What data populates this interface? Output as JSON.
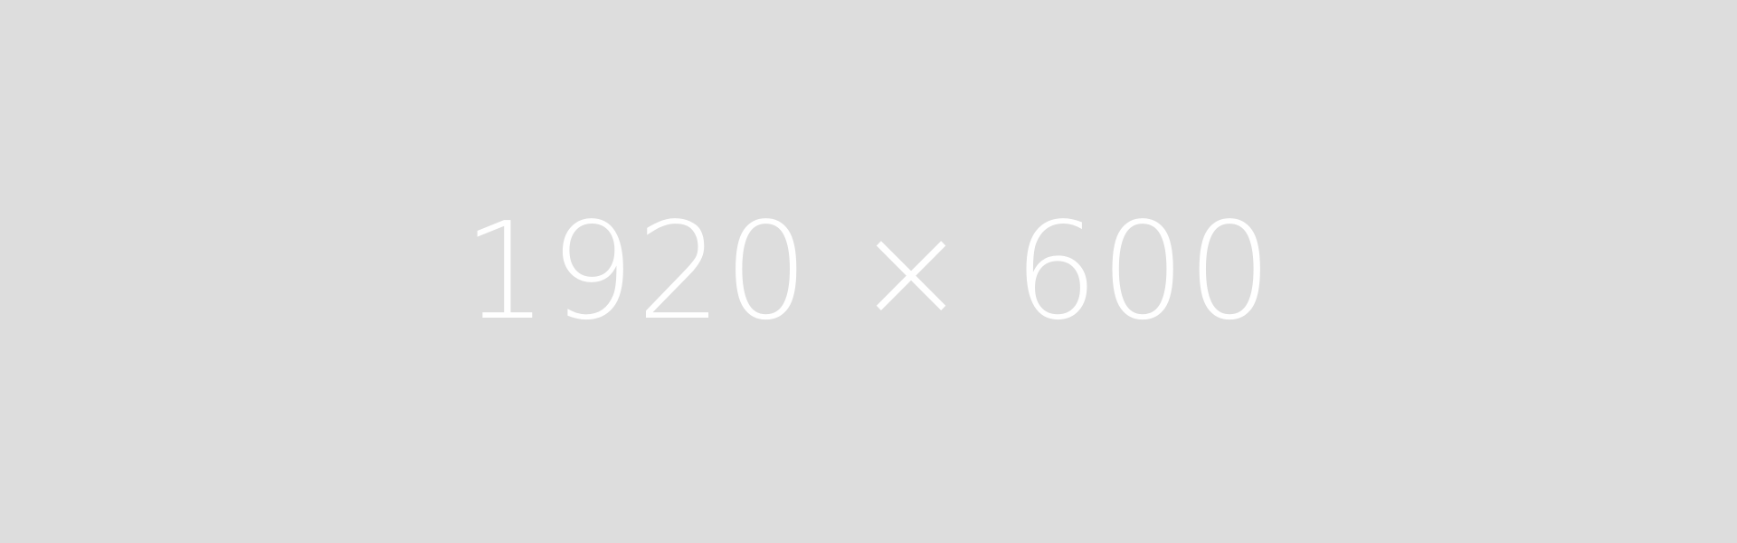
{
  "placeholder": {
    "label": "1920 × 600",
    "background_color": "#dddddd",
    "text_color": "#ffffff"
  }
}
